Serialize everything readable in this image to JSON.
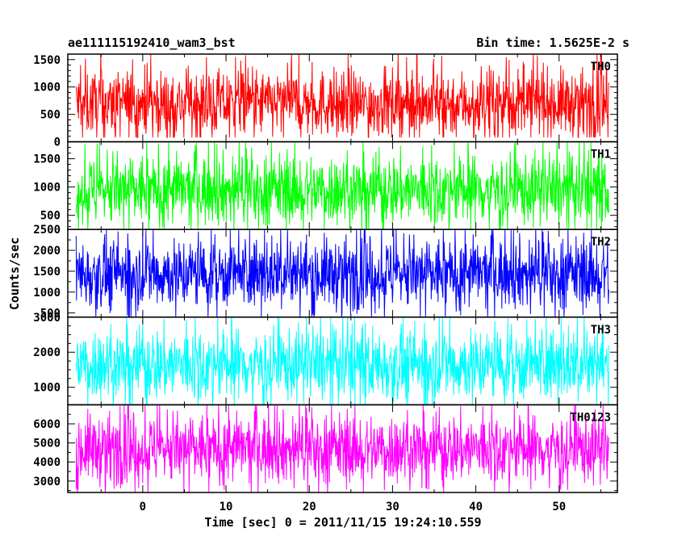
{
  "header": {
    "title_left": "ae111115192410_wam3_bst",
    "title_right": "Bin time: 1.5625E-2 s"
  },
  "chart_data": {
    "type": "line",
    "title": "ae111115192410_wam3_bst",
    "subtitle": "Bin time: 1.5625E-2 s",
    "xlabel": "Time [sec] 0 = 2011/11/15 19:24:10.559",
    "ylabel": "Counts/sec",
    "xlim": [
      -9,
      57
    ],
    "data_xrange": [
      -8,
      56
    ],
    "x_ticks": [
      0,
      10,
      20,
      30,
      40,
      50
    ],
    "grid": false,
    "panels": [
      {
        "name": "TH0",
        "color": "#ff0000",
        "ylim": [
          0,
          1600
        ],
        "y_ticks": [
          0,
          500,
          1000,
          1500
        ],
        "mean": 700,
        "spread": 300,
        "min": 80,
        "max": 1600
      },
      {
        "name": "TH1",
        "color": "#00ff00",
        "ylim": [
          250,
          1800
        ],
        "y_ticks": [
          500,
          1000,
          1500
        ],
        "mean": 950,
        "spread": 310,
        "min": 250,
        "max": 1800
      },
      {
        "name": "TH2",
        "color": "#0000ff",
        "ylim": [
          400,
          2500
        ],
        "y_ticks": [
          500,
          1000,
          1500,
          2000,
          2500
        ],
        "mean": 1450,
        "spread": 420,
        "min": 400,
        "max": 2500
      },
      {
        "name": "TH3",
        "color": "#00ffff",
        "ylim": [
          500,
          3000
        ],
        "y_ticks": [
          1000,
          2000,
          3000
        ],
        "mean": 1650,
        "spread": 520,
        "min": 500,
        "max": 3000
      },
      {
        "name": "TH0123",
        "color": "#ff00ff",
        "ylim": [
          2400,
          7000
        ],
        "y_ticks": [
          3000,
          4000,
          5000,
          6000
        ],
        "mean": 4700,
        "spread": 900,
        "min": 2400,
        "max": 7000
      }
    ]
  }
}
